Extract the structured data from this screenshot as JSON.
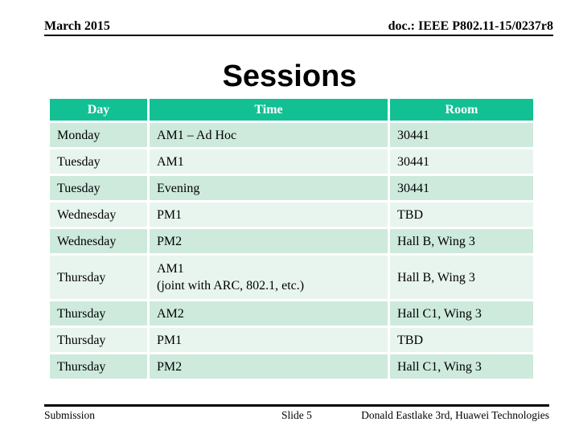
{
  "header": {
    "date": "March 2015",
    "doc_number": "doc.: IEEE P802.11-15/0237r8"
  },
  "title": "Sessions",
  "table": {
    "columns": {
      "day": "Day",
      "time": "Time",
      "room": "Room"
    },
    "rows": [
      {
        "day": "Monday",
        "time": "AM1 – Ad Hoc",
        "room": "30441"
      },
      {
        "day": "Tuesday",
        "time": "AM1",
        "room": "30441"
      },
      {
        "day": "Tuesday",
        "time": "Evening",
        "room": "30441"
      },
      {
        "day": "Wednesday",
        "time": "PM1",
        "room": "TBD"
      },
      {
        "day": "Wednesday",
        "time": "PM2",
        "room": "Hall B, Wing 3"
      },
      {
        "day": "Thursday",
        "time": "AM1\n(joint with ARC, 802.1, etc.)",
        "room": "Hall B, Wing 3"
      },
      {
        "day": "Thursday",
        "time": "AM2",
        "room": "Hall C1, Wing 3"
      },
      {
        "day": "Thursday",
        "time": "PM1",
        "room": "TBD"
      },
      {
        "day": "Thursday",
        "time": "PM2",
        "room": "Hall C1, Wing 3"
      }
    ]
  },
  "footer": {
    "left": "Submission",
    "center": "Slide 5",
    "right": "Donald Eastlake 3rd, Huawei Technologies"
  },
  "colors": {
    "header_green": "#12C093",
    "header_text": "#FFFFFF",
    "row_dark": "#CDEADD",
    "row_light": "#E8F5EE",
    "text": "#000000"
  }
}
